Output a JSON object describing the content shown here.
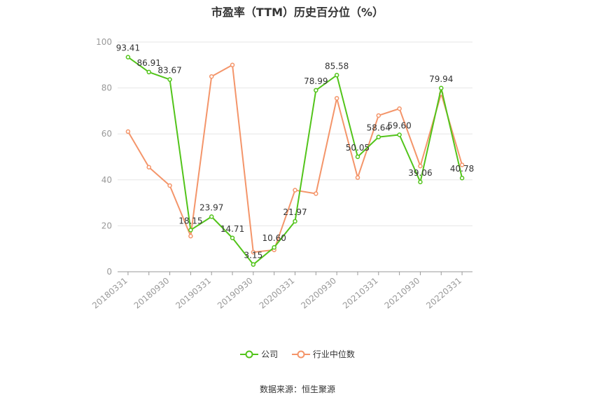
{
  "title": "市盈率（TTM）历史百分位（%）",
  "source": "数据来源：恒生聚源",
  "colors": {
    "company": "#52c41a",
    "industry": "#f4956a",
    "grid": "#e6e6e6",
    "axis": "#999999"
  },
  "chart_data": {
    "type": "line",
    "title": "市盈率（TTM）历史百分位（%）",
    "ylim": [
      0,
      100
    ],
    "yticks": [
      0,
      20,
      40,
      60,
      80,
      100
    ],
    "grid": true,
    "legend_position": "bottom",
    "categories": [
      "20180331",
      "20180630",
      "20180930",
      "20181231",
      "20190331",
      "20190630",
      "20190930",
      "20191231",
      "20200331",
      "20200630",
      "20200930",
      "20201231",
      "20210331",
      "20210630",
      "20210930",
      "20211231",
      "20220331"
    ],
    "xtick_labels": [
      "20180331",
      "20180930",
      "20190331",
      "20190930",
      "20200331",
      "20200930",
      "20210331",
      "20210930",
      "20220331"
    ],
    "series": [
      {
        "name": "公司",
        "color": "#52c41a",
        "show_labels": true,
        "values": [
          93.41,
          86.91,
          83.67,
          18.15,
          23.97,
          14.71,
          3.15,
          10.6,
          21.97,
          78.99,
          85.58,
          50.05,
          58.64,
          59.6,
          39.06,
          79.94,
          40.78
        ],
        "labels": [
          "93.41",
          "86.91",
          "83.67",
          "18.15",
          "23.97",
          "14.71",
          "3.15",
          "10.60",
          "21.97",
          "78.99",
          "85.58",
          "50.05",
          "58.64",
          "59.60",
          "39.06",
          "79.94",
          "40.78"
        ]
      },
      {
        "name": "行业中位数",
        "color": "#f4956a",
        "show_labels": false,
        "values": [
          61,
          45.5,
          37.5,
          15.5,
          85,
          90,
          8.5,
          9.5,
          35.5,
          34,
          75.5,
          41,
          68,
          71,
          46,
          77.5,
          46.5
        ]
      }
    ]
  }
}
